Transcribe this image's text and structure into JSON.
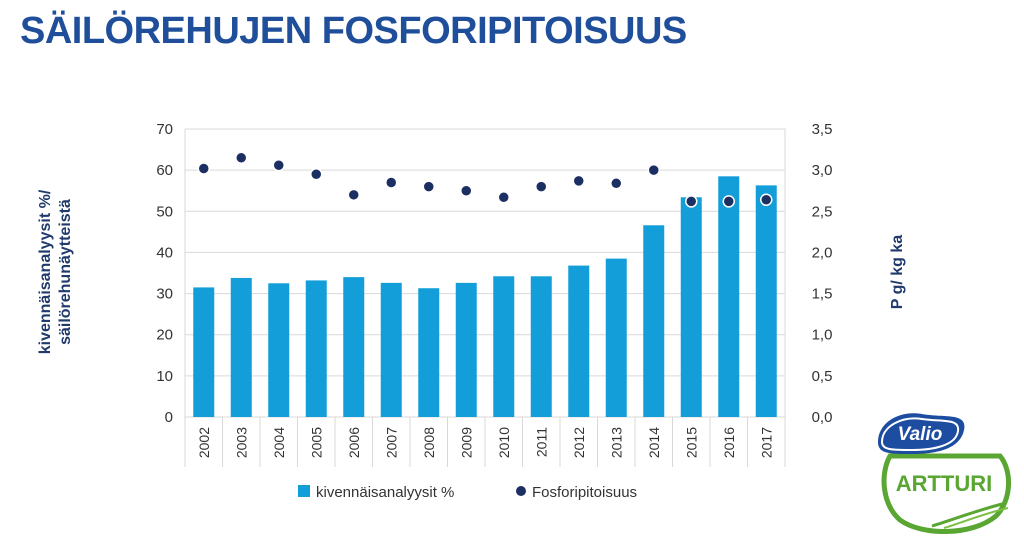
{
  "title": "SÄILÖREHUJEN FOSFORIPITOISUUS",
  "logo": {
    "brand_text": "Valio",
    "product_text": "ARTTURI"
  },
  "chart_data": {
    "type": "bar",
    "categories": [
      "2002",
      "2003",
      "2004",
      "2005",
      "2006",
      "2007",
      "2008",
      "2009",
      "2010",
      "2011",
      "2012",
      "2013",
      "2014",
      "2015",
      "2016",
      "2017"
    ],
    "ylabel_left_lines": [
      "kivennäisanalyysit %/",
      "säilörehunäytteistä"
    ],
    "ylabel_right": "P g/ kg ka",
    "ylim_left": [
      0,
      70
    ],
    "ylim_right": [
      0,
      3.5
    ],
    "left_ticks": [
      "0",
      "10",
      "20",
      "30",
      "40",
      "50",
      "60",
      "70"
    ],
    "right_ticks": [
      "0,0",
      "0,5",
      "1,0",
      "1,5",
      "2,0",
      "2,5",
      "3,0",
      "3,5"
    ],
    "grid": true,
    "legend_position": "bottom",
    "series": [
      {
        "name": "kivennäisanalyysit %",
        "type": "bar",
        "axis": "left",
        "color": "#139ed9",
        "values": [
          31.5,
          33.8,
          32.5,
          33.2,
          34.0,
          32.6,
          31.3,
          32.6,
          34.2,
          34.2,
          36.8,
          38.5,
          46.6,
          53.4,
          58.5,
          56.3
        ]
      },
      {
        "name": "Fosforipitoisuus",
        "type": "scatter",
        "axis": "right",
        "color": "#1b2f63",
        "values": [
          3.02,
          3.15,
          3.06,
          2.95,
          2.7,
          2.85,
          2.8,
          2.75,
          2.67,
          2.8,
          2.87,
          2.84,
          3.0,
          2.62,
          2.62,
          2.64
        ]
      }
    ]
  },
  "colors": {
    "title": "#1f4e9b",
    "axis_label": "#1f3a6b",
    "gridline": "#d9d9d9",
    "logo_blue": "#1c4da1",
    "logo_green": "#5aa632"
  }
}
